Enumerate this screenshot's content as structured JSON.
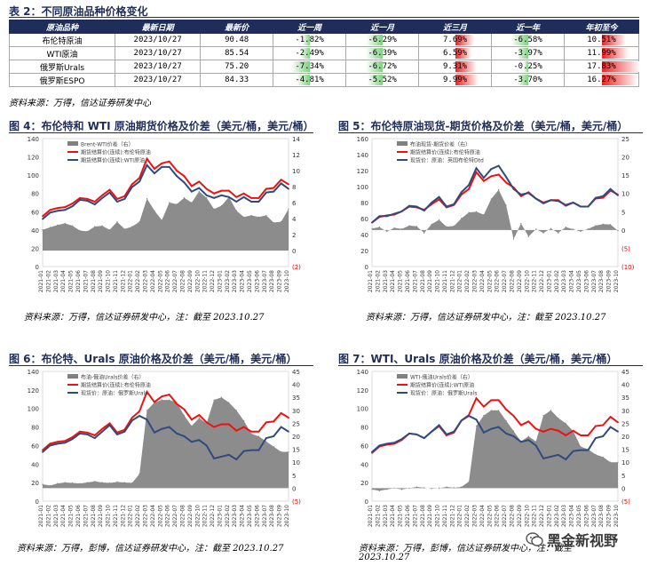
{
  "table": {
    "title": "表 2：不同原油品种价格变化",
    "headers": [
      "原油品种",
      "最新日期",
      "最新价",
      "近一周",
      "近一月",
      "近三月",
      "近一年",
      "年初至今"
    ],
    "rows": [
      {
        "name": "布伦特原油",
        "date": "2023/10/27",
        "price": "90.48",
        "w": "-1.82%",
        "m": "-6.29%",
        "q": "7.69%",
        "y": "-6.58%",
        "ytd": "10.51%"
      },
      {
        "name": "WTI原油",
        "date": "2023/10/27",
        "price": "85.54",
        "w": "-2.49%",
        "m": "-6.39%",
        "q": "6.59%",
        "y": "-3.97%",
        "ytd": "11.99%"
      },
      {
        "name": "俄罗斯Urals",
        "date": "2023/10/27",
        "price": "75.20",
        "w": "-7.34%",
        "m": "-6.72%",
        "q": "9.31%",
        "y": "-0.25%",
        "ytd": "17.83%"
      },
      {
        "name": "俄罗斯ESPO",
        "date": "2023/10/27",
        "price": "84.33",
        "w": "-4.81%",
        "m": "-5.52%",
        "q": "9.99%",
        "y": "-3.70%",
        "ytd": "16.27%"
      }
    ],
    "source": "资料来源：万得，信达证券研发中心"
  },
  "figs": [
    {
      "title": "图 4：布伦特和 WTI 原油期货价格及价差（美元/桶，美元/桶）",
      "source": "资料来源：万得，信达证券研发中心，注：截至 2023.10.27"
    },
    {
      "title": "图 5：布伦特原油现货-期货价格及价差（美元/桶，美元/桶）",
      "source": "资料来源：万得，信达证券研发中心，注：截至 2023.10.27"
    },
    {
      "title": "图 6：布伦特、Urals 原油价格及价差（美元/桶，美元/桶）",
      "source": "资料来源：万得，彭博，信达证券研发中心，注：截至 2023.10.27"
    },
    {
      "title": "图 7：WTI、Urals 原油价格及价差（美元/桶，美元/桶）",
      "source1": "资料来源：万得，彭博，信达证券研发中心，注：截至",
      "source2": "2023.10.27"
    }
  ],
  "watermark": "黑金新视野",
  "chart_data": [
    {
      "type": "line",
      "title": "",
      "left_axis": {
        "ticks": [
          "0",
          "20",
          "40",
          "60",
          "80",
          "100",
          "120",
          "140"
        ],
        "ylim": [
          0,
          140
        ]
      },
      "right_axis": {
        "ticks": [
          "(2)",
          "0",
          "2",
          "4",
          "6",
          "8",
          "10",
          "12",
          "14"
        ],
        "ylim": [
          -2,
          14
        ]
      },
      "x_ticks": [
        "2021-01",
        "2021-02",
        "2021-03",
        "2021-04",
        "2021-05",
        "2021-06",
        "2021-07",
        "2021-08",
        "2021-09",
        "2021-10",
        "2021-11",
        "2021-12",
        "2022-01",
        "2022-02",
        "2022-03",
        "2022-04",
        "2022-05",
        "2022-06",
        "2022-07",
        "2022-08",
        "2022-09",
        "2022-10",
        "2022-11",
        "2022-12",
        "2023-01",
        "2023-02",
        "2023-03",
        "2023-04",
        "2023-05",
        "2023-06",
        "2023-07",
        "2023-08",
        "2023-09",
        "2023-10"
      ],
      "legend": [
        "Brent-WTI价差（右）",
        "期货结算价(连续):布伦特原油",
        "期货结算价(连续):WTI原油"
      ],
      "series": [
        {
          "name": "Brent-WTI价差（右）",
          "axis": "right",
          "color": "#808080",
          "kind": "area",
          "values": [
            2.6,
            2.9,
            3.2,
            3.4,
            3.1,
            2.5,
            2.4,
            3.0,
            3.1,
            2.6,
            3.6,
            2.7,
            3.0,
            3.6,
            6.5,
            5.0,
            3.8,
            6.0,
            5.8,
            6.6,
            6.0,
            7.4,
            6.6,
            5.2,
            5.6,
            6.7,
            5.0,
            4.2,
            4.4,
            4.2,
            4.4,
            3.5,
            3.6,
            5.2
          ]
        },
        {
          "name": "期货结算价(连续):布伦特原油",
          "axis": "left",
          "color": "#ee1111",
          "kind": "line",
          "values": [
            55,
            62,
            64,
            65,
            69,
            75,
            74,
            71,
            78,
            84,
            74,
            77,
            90,
            97,
            118,
            107,
            113,
            115,
            105,
            99,
            88,
            93,
            85,
            80,
            83,
            83,
            76,
            80,
            75,
            75,
            85,
            86,
            95,
            90
          ]
        },
        {
          "name": "期货结算价(连续):WTI原油",
          "axis": "left",
          "color": "#2f4a7f",
          "kind": "line",
          "values": [
            52,
            59,
            61,
            62,
            66,
            73,
            72,
            68,
            75,
            81,
            71,
            74,
            87,
            93,
            111,
            102,
            109,
            109,
            99,
            92,
            82,
            86,
            78,
            75,
            78,
            76,
            71,
            76,
            71,
            71,
            81,
            82,
            91,
            85
          ]
        }
      ]
    },
    {
      "type": "line",
      "title": "",
      "left_axis": {
        "ticks": [
          "0",
          "20",
          "40",
          "60",
          "80",
          "100",
          "120",
          "140",
          "160"
        ],
        "ylim": [
          0,
          160
        ]
      },
      "right_axis": {
        "ticks": [
          "(10)",
          "(5)",
          "0",
          "5",
          "10",
          "15",
          "20",
          "25"
        ],
        "ylim": [
          -10,
          25
        ]
      },
      "x_ticks": [
        "2021-01",
        "2021-02",
        "2021-03",
        "2021-04",
        "2021-05",
        "2021-06",
        "2021-07",
        "2021-08",
        "2021-09",
        "2021-10",
        "2021-11",
        "2021-12",
        "2022-01",
        "2022-02",
        "2022-03",
        "2022-04",
        "2022-05",
        "2022-06",
        "2022-07",
        "2022-08",
        "2022-09",
        "2022-10",
        "2022-11",
        "2022-12",
        "2023-01",
        "2023-02",
        "2023-03",
        "2023-04",
        "2023-05",
        "2023-06",
        "2023-07",
        "2023-08",
        "2023-09",
        "2023-10"
      ],
      "legend": [
        "布油现货-期货价差（右）",
        "期货结算价(连续):布伦特原油",
        "现货价：原油：英国布伦特Dtd"
      ],
      "series": [
        {
          "name": "布油现货-期货价差（右）",
          "axis": "right",
          "color": "#808080",
          "kind": "area",
          "values": [
            0.4,
            0.8,
            -0.4,
            0.6,
            0.3,
            1.2,
            1.0,
            -0.8,
            1.6,
            2.8,
            0.9,
            1.1,
            3.2,
            4.8,
            5.0,
            4.2,
            8.5,
            11.0,
            6.8,
            -2.5,
            1.8,
            -1.8,
            0.2,
            -0.8,
            0.4,
            -0.8,
            0.8,
            0.2,
            -0.4,
            0.3,
            1.2,
            1.6,
            1.5,
            -0.2
          ]
        },
        {
          "name": "期货结算价(连续):布伦特原油",
          "axis": "left",
          "color": "#ee1111",
          "kind": "line",
          "values": [
            55,
            62,
            64,
            65,
            69,
            75,
            74,
            71,
            78,
            84,
            74,
            77,
            90,
            97,
            118,
            107,
            113,
            115,
            105,
            99,
            88,
            93,
            85,
            80,
            83,
            83,
            76,
            80,
            75,
            75,
            85,
            86,
            95,
            90
          ]
        },
        {
          "name": "现货价：原油：英国布伦特Dtd",
          "axis": "left",
          "color": "#2f4a7f",
          "kind": "line",
          "values": [
            55,
            63,
            63,
            66,
            69,
            76,
            75,
            70,
            80,
            87,
            75,
            78,
            93,
            102,
            123,
            111,
            122,
            126,
            112,
            97,
            90,
            92,
            85,
            79,
            83,
            82,
            77,
            80,
            75,
            75,
            86,
            88,
            97,
            89
          ]
        }
      ]
    },
    {
      "type": "line",
      "title": "",
      "left_axis": {
        "ticks": [
          "0",
          "20",
          "40",
          "60",
          "80",
          "100",
          "120",
          "140"
        ],
        "ylim": [
          0,
          140
        ]
      },
      "right_axis": {
        "ticks": [
          "(5)",
          "0",
          "5",
          "10",
          "15",
          "20",
          "25",
          "30",
          "35",
          "40",
          "45"
        ],
        "ylim": [
          -5,
          45
        ]
      },
      "x_ticks": [
        "2021-01",
        "2021-02",
        "2021-03",
        "2021-04",
        "2021-05",
        "2021-06",
        "2021-07",
        "2021-08",
        "2021-09",
        "2021-10",
        "2021-11",
        "2021-12",
        "2022-01",
        "2022-02",
        "2022-03",
        "2022-04",
        "2022-05",
        "2022-06",
        "2022-07",
        "2022-08",
        "2022-09",
        "2022-10",
        "2022-11",
        "2022-12",
        "2023-01",
        "2023-02",
        "2023-03",
        "2023-04",
        "2023-05",
        "2023-06",
        "2023-07",
        "2023-08",
        "2023-09",
        "2023-10"
      ],
      "legend": [
        "布油-俄油Urals价差（右）",
        "期货结算价(连续):布伦特原油",
        "现货价：原油：俄罗斯Urals"
      ],
      "series": [
        {
          "name": "布油-俄油Urals价差（右）",
          "axis": "right",
          "color": "#808080",
          "kind": "area",
          "values": [
            1.5,
            1.0,
            1.8,
            2.2,
            2.0,
            1.8,
            2.2,
            2.6,
            2.2,
            2.0,
            2.4,
            2.2,
            2.0,
            5.5,
            30.0,
            33.0,
            34.0,
            34.0,
            33.0,
            28.0,
            24.0,
            27.0,
            25.0,
            34.0,
            35.0,
            33.0,
            30.0,
            26.0,
            21.0,
            20.0,
            18.0,
            16.0,
            14.0,
            14.0
          ]
        },
        {
          "name": "期货结算价(连续):布伦特原油",
          "axis": "left",
          "color": "#ee1111",
          "kind": "line",
          "values": [
            55,
            62,
            64,
            65,
            69,
            75,
            74,
            71,
            78,
            84,
            74,
            77,
            90,
            97,
            118,
            107,
            113,
            115,
            105,
            99,
            88,
            93,
            85,
            80,
            83,
            83,
            76,
            80,
            75,
            75,
            85,
            86,
            95,
            90
          ]
        },
        {
          "name": "现货价：原油：俄罗斯Urals",
          "axis": "left",
          "color": "#2f4a7f",
          "kind": "line",
          "values": [
            53,
            60,
            62,
            63,
            67,
            73,
            72,
            68,
            75,
            82,
            72,
            75,
            87,
            92,
            88,
            74,
            78,
            80,
            73,
            70,
            64,
            66,
            60,
            46,
            48,
            50,
            45,
            54,
            55,
            55,
            68,
            70,
            80,
            75
          ]
        }
      ]
    },
    {
      "type": "line",
      "title": "",
      "left_axis": {
        "ticks": [
          "0",
          "20",
          "40",
          "60",
          "80",
          "100",
          "120",
          "140"
        ],
        "ylim": [
          0,
          140
        ]
      },
      "right_axis": {
        "ticks": [
          "(5)",
          "0",
          "5",
          "10",
          "15",
          "20",
          "25",
          "30",
          "35",
          "40",
          "45"
        ],
        "ylim": [
          -5,
          45
        ]
      },
      "x_ticks": [
        "2021-01",
        "2021-02",
        "2021-03",
        "2021-04",
        "2021-05",
        "2021-06",
        "2021-07",
        "2021-08",
        "2021-09",
        "2021-10",
        "2021-11",
        "2021-12",
        "2022-01",
        "2022-02",
        "2022-03",
        "2022-04",
        "2022-05",
        "2022-06",
        "2022-07",
        "2022-08",
        "2022-09",
        "2022-10",
        "2022-11",
        "2022-12",
        "2023-01",
        "2023-02",
        "2023-03",
        "2023-04",
        "2023-05",
        "2023-06",
        "2023-07",
        "2023-08",
        "2023-09",
        "2023-10"
      ],
      "legend": [
        "WTI-俄油Urals价差（右）",
        "期货结算价(连续):WTI原油",
        "现货价：原油：俄罗斯Urals"
      ],
      "series": [
        {
          "name": "WTI-俄油Urals价差（右）",
          "axis": "right",
          "color": "#808080",
          "kind": "area",
          "values": [
            -0.5,
            -1.0,
            -0.5,
            0.0,
            -0.5,
            0.0,
            0.5,
            0.2,
            -0.2,
            0.0,
            0.5,
            0.2,
            0.5,
            2.5,
            24.0,
            28.0,
            30.0,
            30.0,
            26.0,
            22.0,
            18.0,
            20.0,
            18.0,
            28.0,
            30.0,
            27.0,
            25.0,
            22.0,
            16.0,
            15.0,
            13.0,
            12.0,
            10.0,
            10.0
          ]
        },
        {
          "name": "期货结算价(连续):WTI原油",
          "axis": "left",
          "color": "#ee1111",
          "kind": "line",
          "values": [
            52,
            59,
            61,
            62,
            66,
            73,
            72,
            68,
            75,
            81,
            71,
            74,
            87,
            93,
            111,
            102,
            109,
            109,
            99,
            92,
            82,
            86,
            78,
            75,
            78,
            76,
            71,
            76,
            71,
            71,
            81,
            82,
            91,
            85
          ]
        },
        {
          "name": "现货价：原油：俄罗斯Urals",
          "axis": "left",
          "color": "#2f4a7f",
          "kind": "line",
          "values": [
            53,
            60,
            62,
            63,
            67,
            73,
            72,
            68,
            75,
            82,
            72,
            75,
            87,
            92,
            88,
            74,
            78,
            80,
            73,
            70,
            64,
            66,
            60,
            46,
            48,
            50,
            45,
            54,
            55,
            55,
            68,
            70,
            80,
            75
          ]
        }
      ]
    }
  ]
}
